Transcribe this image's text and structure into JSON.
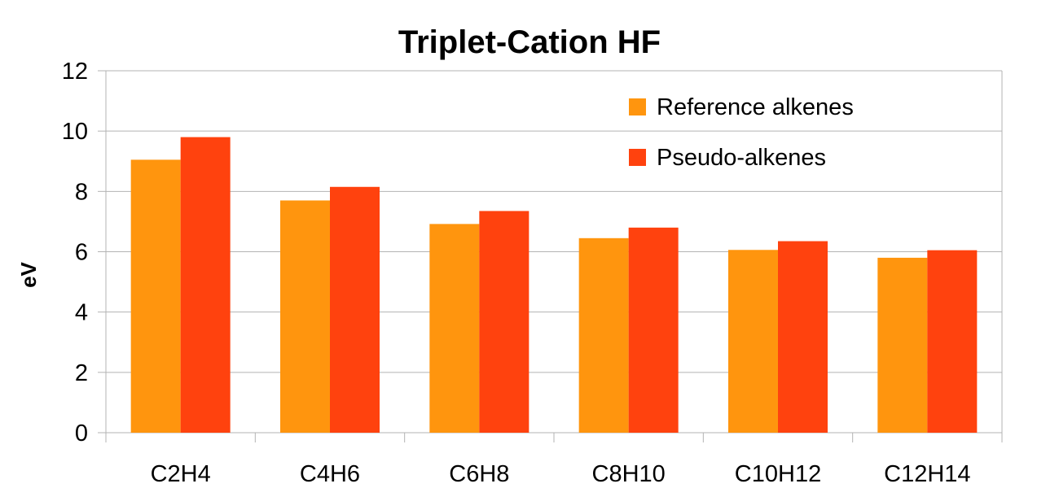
{
  "chart_data": {
    "type": "bar",
    "title": "Triplet-Cation HF",
    "xlabel": "",
    "ylabel": "eV",
    "ylim": [
      0,
      12
    ],
    "yticks": [
      "0",
      "2",
      "4",
      "6",
      "8",
      "10",
      "12"
    ],
    "grid": true,
    "legend_position": "top-right",
    "categories": [
      "C2H4",
      "C4H6",
      "C6H8",
      "C8H10",
      "C10H12",
      "C12H14"
    ],
    "series": [
      {
        "name": "Reference alkenes",
        "color": "#ff950e",
        "values": [
          9.05,
          7.7,
          6.92,
          6.45,
          6.06,
          5.8
        ]
      },
      {
        "name": "Pseudo-alkenes",
        "color": "#ff420e",
        "values": [
          9.8,
          8.15,
          7.35,
          6.8,
          6.35,
          6.05
        ]
      }
    ]
  }
}
